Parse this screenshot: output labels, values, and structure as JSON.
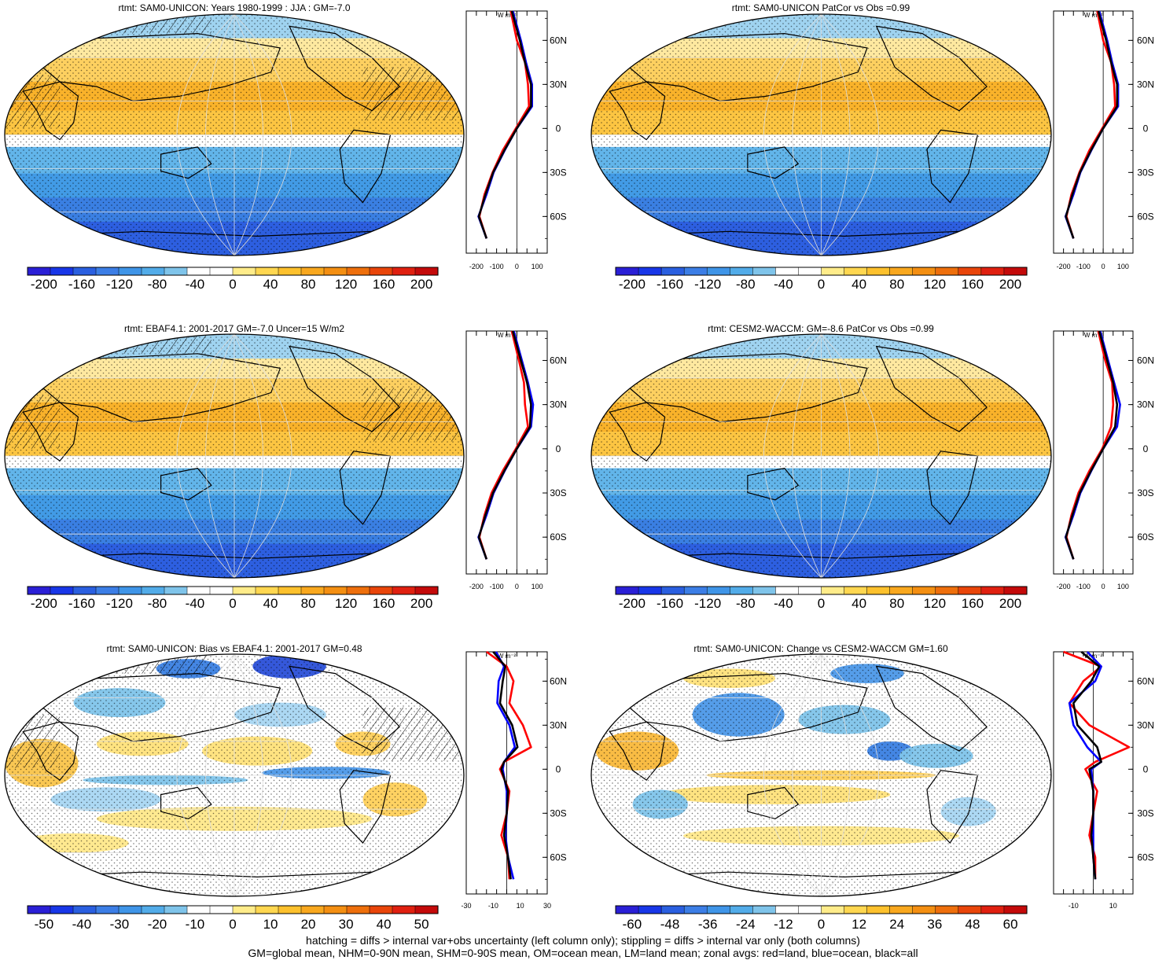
{
  "panels": [
    {
      "title": "rtmt: SAM0-UNICON: Years 1980-1999 : JJA : GM=-7.0",
      "kind": "mean",
      "colorbar": {
        "labels": [
          "-200",
          "-160",
          "-120",
          "-80",
          "-40",
          "0",
          "40",
          "80",
          "120",
          "160",
          "200"
        ]
      },
      "zonal_ticks": [
        "-200",
        "-100",
        "0",
        "100"
      ]
    },
    {
      "title": "rtmt: SAM0-UNICON PatCor vs Obs =0.99",
      "kind": "mean",
      "colorbar": {
        "labels": [
          "-200",
          "-160",
          "-120",
          "-80",
          "-40",
          "0",
          "40",
          "80",
          "120",
          "160",
          "200"
        ]
      },
      "zonal_ticks": [
        "-200",
        "-100",
        "0",
        "100"
      ]
    },
    {
      "title": "rtmt: EBAF4.1: 2001-2017 GM=-7.0 Uncer=15 W/m2",
      "kind": "mean",
      "colorbar": {
        "labels": [
          "-200",
          "-160",
          "-120",
          "-80",
          "-40",
          "0",
          "40",
          "80",
          "120",
          "160",
          "200"
        ]
      },
      "zonal_ticks": [
        "-200",
        "-100",
        "0",
        "100"
      ]
    },
    {
      "title": "rtmt: CESM2-WACCM: GM=-8.6 PatCor vs Obs =0.99",
      "kind": "mean",
      "colorbar": {
        "labels": [
          "-200",
          "-160",
          "-120",
          "-80",
          "-40",
          "0",
          "40",
          "80",
          "120",
          "160",
          "200"
        ]
      },
      "zonal_ticks": [
        "-200",
        "-100",
        "0",
        "100"
      ]
    },
    {
      "title": "rtmt: SAM0-UNICON: Bias vs EBAF4.1: 2001-2017 GM=0.48",
      "kind": "bias",
      "colorbar": {
        "labels": [
          "-50",
          "-40",
          "-30",
          "-20",
          "-10",
          "0",
          "10",
          "20",
          "30",
          "40",
          "50"
        ]
      },
      "zonal_ticks": [
        "-30",
        "-10",
        "10",
        "30"
      ]
    },
    {
      "title": "rtmt: SAM0-UNICON: Change vs CESM2-WACCM GM=1.60",
      "kind": "change",
      "colorbar": {
        "labels": [
          "-60",
          "-48",
          "-36",
          "-24",
          "-12",
          "0",
          "12",
          "24",
          "36",
          "48",
          "60"
        ]
      },
      "zonal_ticks": [
        "-10",
        "10"
      ]
    }
  ],
  "zonal_units": "W m⁻²",
  "lat_labels": [
    "60N",
    "30N",
    "0",
    "30S",
    "60S"
  ],
  "colors": {
    "palette": [
      "#2a1fd6",
      "#1836e8",
      "#2a5fe0",
      "#3c7ee6",
      "#3f95e8",
      "#52ace9",
      "#7fc4ea",
      "#ffffff",
      "#ffffff",
      "#ffec8a",
      "#ffd750",
      "#fdc12d",
      "#f9a81e",
      "#f48f12",
      "#ee6f0c",
      "#e9450a",
      "#e02010",
      "#c40a0a"
    ],
    "land_line": "red",
    "ocean_line": "blue",
    "all_line": "black"
  },
  "footer": {
    "line1": "hatching = diffs > internal var+obs uncertainty (left column only); stippling = diffs > internal var only (both columns)",
    "line2": "GM=global mean, NHM=0-90N mean, SHM=0-90S mean, OM=ocean mean, LM=land mean; zonal avgs: red=land, blue=ocean, black=all"
  },
  "chart_data": [
    {
      "type": "heatmap",
      "title": "rtmt: SAM0-UNICON: Years 1980-1999 : JJA : GM=-7.0",
      "colorbar_range": [
        -200,
        200
      ],
      "zonal_profile": {
        "lat": [
          80,
          60,
          45,
          30,
          15,
          0,
          -15,
          -30,
          -45,
          -60,
          -75
        ],
        "series": [
          {
            "name": "land",
            "values": [
              -30,
              0,
              40,
              55,
              60,
              -5,
              -70,
              -120,
              -160,
              -185,
              -150
            ]
          },
          {
            "name": "ocean",
            "values": [
              -20,
              20,
              45,
              75,
              75,
              0,
              -60,
              -115,
              -150,
              -190,
              -150
            ]
          },
          {
            "name": "all",
            "values": [
              -25,
              15,
              40,
              70,
              70,
              0,
              -62,
              -117,
              -155,
              -188,
              -150
            ]
          }
        ]
      }
    },
    {
      "type": "heatmap",
      "title": "rtmt: SAM0-UNICON PatCor vs Obs =0.99",
      "colorbar_range": [
        -200,
        200
      ],
      "zonal_profile": {
        "lat": [
          80,
          60,
          45,
          30,
          15,
          0,
          -15,
          -30,
          -45,
          -60,
          -75
        ],
        "series": [
          {
            "name": "land",
            "values": [
              -30,
              0,
              40,
              55,
              60,
              -5,
              -70,
              -120,
              -160,
              -185,
              -150
            ]
          },
          {
            "name": "ocean",
            "values": [
              -20,
              20,
              45,
              75,
              75,
              0,
              -60,
              -115,
              -150,
              -190,
              -150
            ]
          },
          {
            "name": "all",
            "values": [
              -25,
              15,
              40,
              70,
              70,
              0,
              -62,
              -117,
              -155,
              -188,
              -150
            ]
          }
        ]
      }
    },
    {
      "type": "heatmap",
      "title": "rtmt: EBAF4.1: 2001-2017 GM=-7.0 Uncer=15 W/m2",
      "colorbar_range": [
        -200,
        200
      ],
      "zonal_profile": {
        "lat": [
          80,
          60,
          45,
          30,
          15,
          0,
          -15,
          -30,
          -45,
          -60,
          -75
        ],
        "series": [
          {
            "name": "land",
            "values": [
              -25,
              10,
              35,
              40,
              55,
              -5,
              -70,
              -125,
              -160,
              -185,
              -150
            ]
          },
          {
            "name": "ocean",
            "values": [
              -15,
              25,
              55,
              80,
              70,
              0,
              -60,
              -115,
              -150,
              -190,
              -150
            ]
          },
          {
            "name": "all",
            "values": [
              -20,
              20,
              50,
              70,
              65,
              0,
              -62,
              -118,
              -155,
              -188,
              -150
            ]
          }
        ]
      }
    },
    {
      "type": "heatmap",
      "title": "rtmt: CESM2-WACCM: GM=-8.6 PatCor vs Obs =0.99",
      "colorbar_range": [
        -200,
        200
      ],
      "zonal_profile": {
        "lat": [
          80,
          60,
          45,
          30,
          15,
          0,
          -15,
          -30,
          -45,
          -60,
          -75
        ],
        "series": [
          {
            "name": "land",
            "values": [
              -25,
              10,
              45,
              50,
              40,
              -5,
              -70,
              -125,
              -160,
              -185,
              -150
            ]
          },
          {
            "name": "ocean",
            "values": [
              -15,
              25,
              55,
              85,
              70,
              0,
              -60,
              -115,
              -150,
              -190,
              -150
            ]
          },
          {
            "name": "all",
            "values": [
              -20,
              20,
              50,
              70,
              60,
              0,
              -62,
              -118,
              -155,
              -188,
              -150
            ]
          }
        ]
      }
    },
    {
      "type": "heatmap",
      "title": "rtmt: SAM0-UNICON: Bias vs EBAF4.1: 2001-2017 GM=0.48",
      "colorbar_range": [
        -50,
        50
      ],
      "zonal_profile": {
        "lat": [
          80,
          70,
          60,
          45,
          30,
          15,
          5,
          0,
          -15,
          -30,
          -45,
          -60,
          -75
        ],
        "series": [
          {
            "name": "land",
            "values": [
              -15,
              0,
              5,
              2,
              12,
              18,
              -2,
              -5,
              2,
              0,
              -4,
              1,
              2
            ],
            "color": "red"
          },
          {
            "name": "ocean",
            "values": [
              -8,
              -2,
              -6,
              -7,
              2,
              6,
              -2,
              -3,
              0,
              0,
              -1,
              1,
              5
            ],
            "color": "blue"
          },
          {
            "name": "all",
            "values": [
              -10,
              -1,
              -3,
              -5,
              4,
              8,
              -2,
              -4,
              1,
              0,
              -2,
              1,
              3
            ],
            "color": "black"
          }
        ]
      }
    },
    {
      "type": "heatmap",
      "title": "rtmt: SAM0-UNICON: Change vs CESM2-WACCM GM=1.60",
      "colorbar_range": [
        -60,
        60
      ],
      "zonal_profile": {
        "lat": [
          80,
          70,
          60,
          45,
          30,
          15,
          5,
          0,
          -15,
          -30,
          -45,
          -60,
          -75
        ],
        "series": [
          {
            "name": "land",
            "values": [
              -15,
              4,
              -5,
              -12,
              -2,
              18,
              1,
              -4,
              2,
              0,
              -2,
              1,
              1
            ],
            "color": "red"
          },
          {
            "name": "ocean",
            "values": [
              -3,
              4,
              1,
              -12,
              -10,
              -3,
              4,
              -1,
              0,
              0,
              0,
              0,
              1
            ],
            "color": "blue"
          },
          {
            "name": "all",
            "values": [
              -6,
              3,
              -1,
              -10,
              -8,
              2,
              4,
              -2,
              0,
              0,
              -1,
              0,
              1
            ],
            "color": "black"
          }
        ]
      }
    }
  ]
}
